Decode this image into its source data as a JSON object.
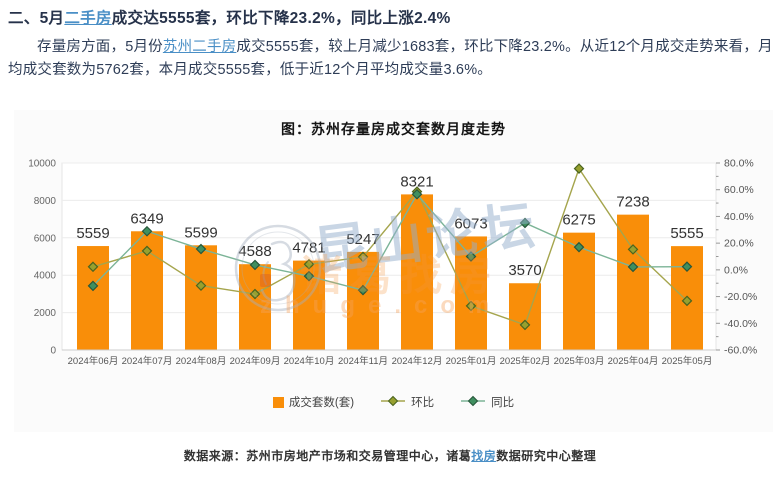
{
  "page": {
    "heading": {
      "pre": "二、5月",
      "link": "二手房",
      "post": "成交达5555套，环比下降23.2%，同比上涨2.4%"
    },
    "paragraph": {
      "pre": "存量房方面，5月份",
      "link": "苏州二手房",
      "post": "成交5555套，较上月减少1683套，环比下降23.2%。从近12个月成交走势来看，月均成交套数为5762套，本月成交5555套，低于近12个月平均成交量3.6%。"
    },
    "footer": {
      "pre": "数据来源：苏州市房地产市场和交易管理中心，诸葛",
      "link": "找房",
      "post": "数据研究中心整理"
    },
    "link_color": "#4a8fc6"
  },
  "watermark": {
    "badge": "circle-logo",
    "text_main": "昆山论坛",
    "text_sub": "诸葛找房",
    "text_url": "zhuge.com"
  },
  "chart_data": {
    "type": "bar",
    "title": "图：苏州存量房成交套数月度走势",
    "categories": [
      "2024年06月",
      "2024年07月",
      "2024年08月",
      "2024年09月",
      "2024年10月",
      "2024年11月",
      "2024年12月",
      "2025年01月",
      "2025年02月",
      "2025年03月",
      "2025年04月",
      "2025年05月"
    ],
    "series": [
      {
        "name": "成交套数(套)",
        "type": "bar",
        "axis": "left",
        "color": "#f98e09",
        "values": [
          5559,
          6349,
          5599,
          4588,
          4781,
          5247,
          8321,
          6073,
          3570,
          6275,
          7238,
          5555
        ],
        "data_labels": true
      },
      {
        "name": "环比",
        "type": "line",
        "axis": "right",
        "color": "#a5a54d",
        "marker": "diamond",
        "marker_fill": "#97a02f",
        "marker_stroke": "#4a641f",
        "values": [
          2.3,
          14.2,
          -11.8,
          -18.1,
          4.2,
          9.7,
          58.6,
          -27.0,
          -41.2,
          75.8,
          15.3,
          -23.2
        ]
      },
      {
        "name": "同比",
        "type": "line",
        "axis": "right",
        "color": "#7cb497",
        "marker": "diamond",
        "marker_fill": "#3f8f5f",
        "marker_stroke": "#28573b",
        "values": [
          -12.0,
          28.9,
          15.6,
          3.7,
          -4.7,
          -15.2,
          56.6,
          10.0,
          35.1,
          17.0,
          2.2,
          2.4
        ]
      }
    ],
    "left_axis": {
      "min": 0,
      "max": 10000,
      "step": 2000
    },
    "right_axis": {
      "min": -60,
      "max": 80,
      "step": 20,
      "minor_step": 10,
      "suffix": "%",
      "decimals": 1
    },
    "legend_position": "bottom",
    "grid": "horizontal",
    "plot_bg": "#ffffff",
    "grid_color": "#ececec",
    "axis_color": "#cccccc"
  }
}
